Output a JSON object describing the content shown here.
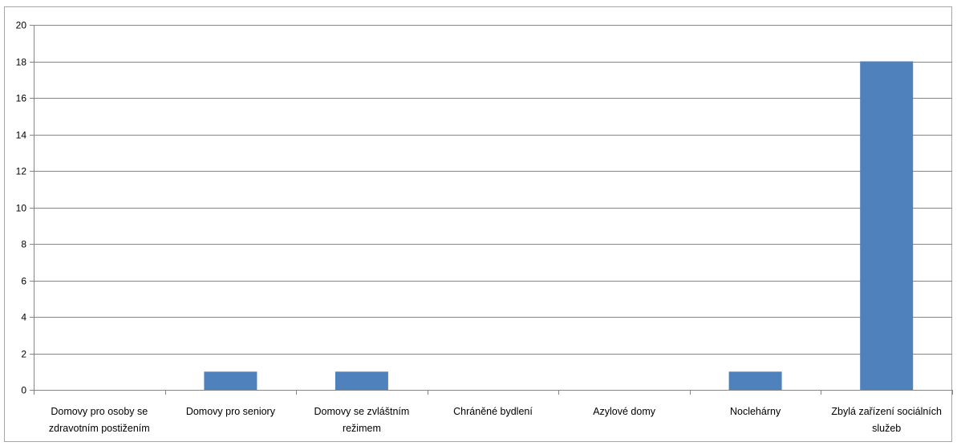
{
  "chart_data": {
    "type": "bar",
    "categories": [
      "Domovy pro osoby se zdravotním postižením",
      "Domovy pro seniory",
      "Domovy se zvláštním režimem",
      "Chráněné bydlení",
      "Azylové domy",
      "Noclehárny",
      "Zbylá zařízení sociálních služeb"
    ],
    "category_lines": [
      [
        "Domovy pro osoby se",
        "zdravotním postižením"
      ],
      [
        "Domovy pro seniory"
      ],
      [
        "Domovy se zvláštním",
        "režimem"
      ],
      [
        "Chráněné bydlení"
      ],
      [
        "Azylové domy"
      ],
      [
        "Noclehárny"
      ],
      [
        "Zbylá zařízení sociálních",
        "služeb"
      ]
    ],
    "values": [
      0,
      1,
      1,
      0,
      0,
      1,
      18
    ],
    "ylim": [
      0,
      20
    ],
    "yticks": [
      0,
      2,
      4,
      6,
      8,
      10,
      12,
      14,
      16,
      18,
      20
    ],
    "grid": true,
    "legend": "none",
    "bar_color": "#4f81bd",
    "title": "",
    "xlabel": "",
    "ylabel": ""
  }
}
